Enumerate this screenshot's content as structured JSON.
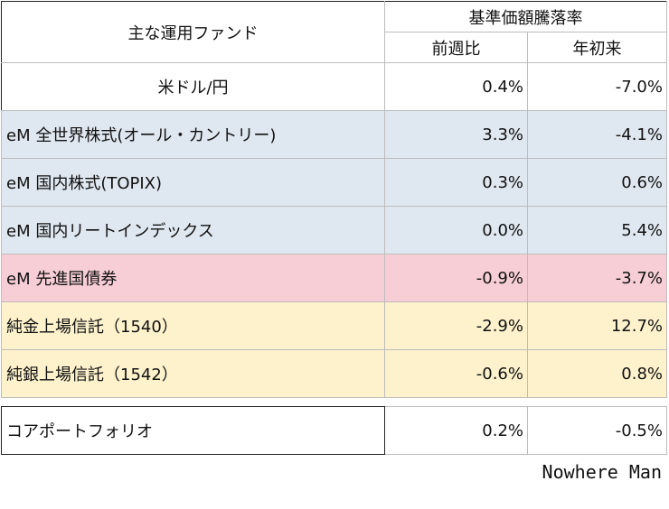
{
  "header": {
    "fund_column": "主な運用ファンド",
    "group_label": "基準価額騰落率",
    "col_week": "前週比",
    "col_ytd": "年初来"
  },
  "rows": [
    {
      "name": "米ドル/円",
      "week": "0.4%",
      "ytd": "-7.0%"
    },
    {
      "name": "eM 全世界株式(オール・カントリー)",
      "week": "3.3%",
      "ytd": "-4.1%"
    },
    {
      "name": "eM 国内株式(TOPIX)",
      "week": "0.3%",
      "ytd": "0.6%"
    },
    {
      "name": "eM 国内リートインデックス",
      "week": "0.0%",
      "ytd": "5.4%"
    },
    {
      "name": "eM 先進国債券",
      "week": "-0.9%",
      "ytd": "-3.7%"
    },
    {
      "name": "純金上場信託（1540）",
      "week": "-2.9%",
      "ytd": "12.7%"
    },
    {
      "name": "純銀上場信託（1542）",
      "week": "-0.6%",
      "ytd": "0.8%"
    }
  ],
  "core": {
    "name": "コアポートフォリオ",
    "week": "0.2%",
    "ytd": "-0.5%"
  },
  "credit": "Nowhere Man",
  "colors": {
    "equity_blue": "#dfe7f0",
    "bond_pink": "#f7ced6",
    "commodity_yellow": "#fdf2cc"
  }
}
